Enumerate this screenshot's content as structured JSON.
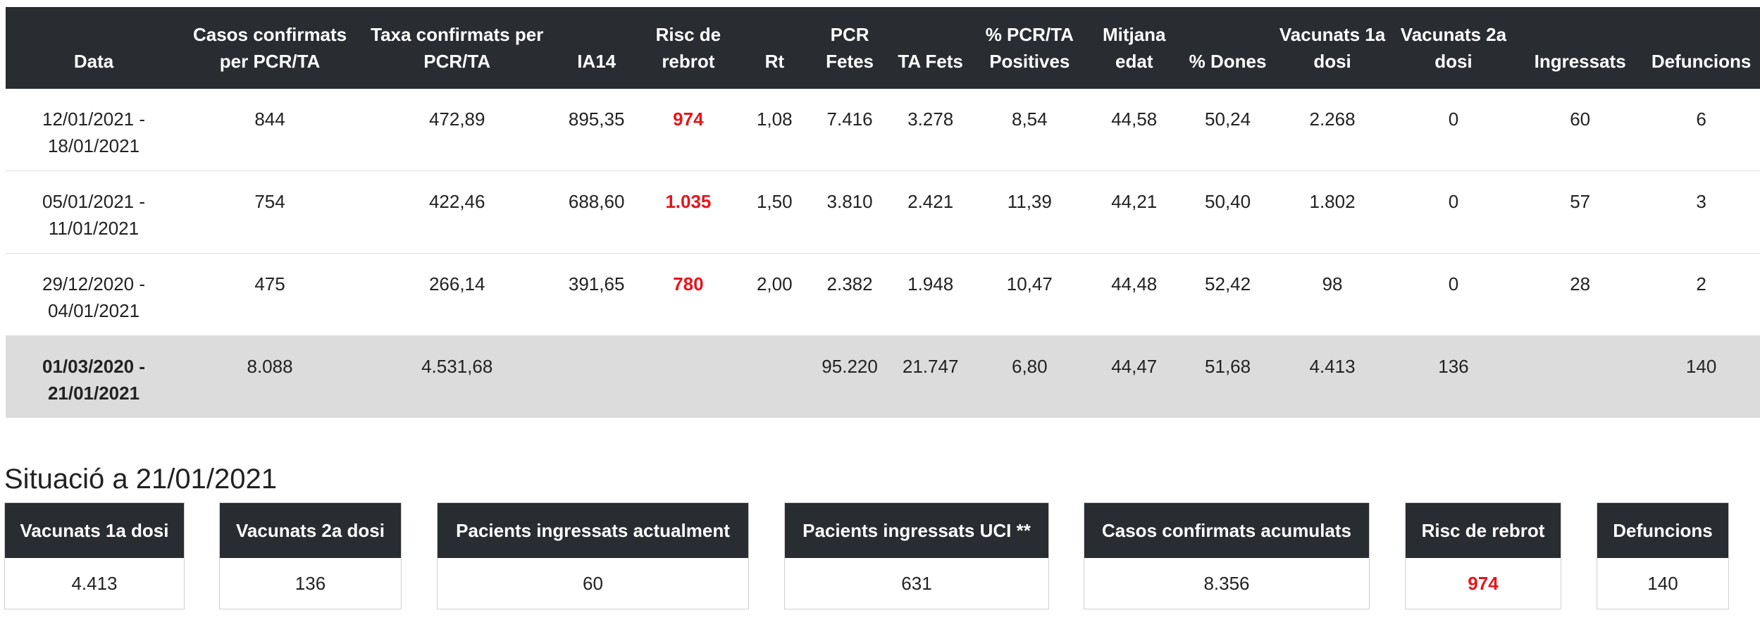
{
  "table": {
    "headers": [
      "Data",
      "Casos confirmats per PCR/TA",
      "Taxa confirmats per PCR/TA",
      "IA14",
      "Risc de rebrot",
      "Rt",
      "PCR Fetes",
      "TA Fets",
      "% PCR/TA Positives",
      "Mitjana edat",
      "% Dones",
      "Vacunats 1a dosi",
      "Vacunats 2a dosi",
      "Ingressats",
      "Defuncions"
    ],
    "rows": [
      [
        "12/01/2021 - 18/01/2021",
        "844",
        "472,89",
        "895,35",
        "974",
        "1,08",
        "7.416",
        "3.278",
        "8,54",
        "44,58",
        "50,24",
        "2.268",
        "0",
        "60",
        "6"
      ],
      [
        "05/01/2021 - 11/01/2021",
        "754",
        "422,46",
        "688,60",
        "1.035",
        "1,50",
        "3.810",
        "2.421",
        "11,39",
        "44,21",
        "50,40",
        "1.802",
        "0",
        "57",
        "3"
      ],
      [
        "29/12/2020 - 04/01/2021",
        "475",
        "266,14",
        "391,65",
        "780",
        "2,00",
        "2.382",
        "1.948",
        "10,47",
        "44,48",
        "52,42",
        "98",
        "0",
        "28",
        "2"
      ]
    ],
    "total": [
      "01/03/2020 - 21/01/2021",
      "8.088",
      "4.531,68",
      "",
      "",
      "",
      "95.220",
      "21.747",
      "6,80",
      "44,47",
      "51,68",
      "4.413",
      "136",
      "",
      "140"
    ]
  },
  "situacio": {
    "title": "Situació a 21/01/2021",
    "cards": [
      {
        "label": "Vacunats 1a dosi",
        "value": "4.413"
      },
      {
        "label": "Vacunats 2a dosi",
        "value": "136"
      },
      {
        "label": "Pacients ingressats actualment",
        "value": "60"
      },
      {
        "label": "Pacients ingressats UCI **",
        "value": "631"
      },
      {
        "label": "Casos confirmats acumulats",
        "value": "8.356"
      },
      {
        "label": "Risc de rebrot",
        "value": "974"
      },
      {
        "label": "Defuncions",
        "value": "140"
      }
    ]
  },
  "colors": {
    "header_bg": "#292d32",
    "risk_red": "#e8141b",
    "total_row_bg": "#dcdcdc"
  }
}
